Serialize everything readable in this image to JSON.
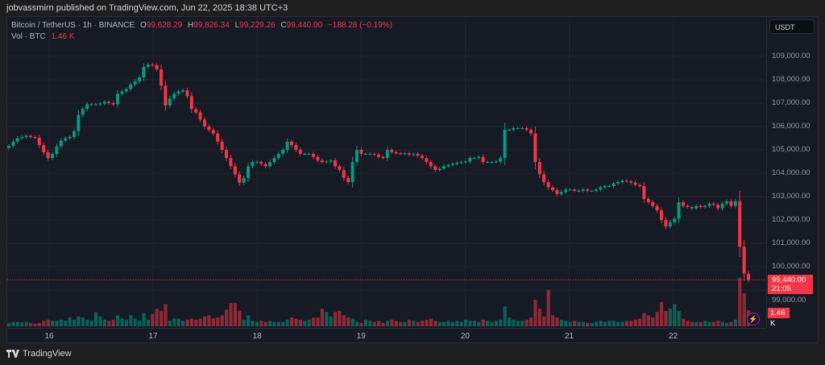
{
  "publisher_line": "jobvassmirn published on TradingView.com, Jun 22, 2025 18:38 UTC+3",
  "legend": {
    "symbol": "Bitcoin / TetherUS · 1h · BINANCE",
    "open_label": "O",
    "open": "99,628.29",
    "high_label": "H",
    "high": "99,826.34",
    "low_label": "L",
    "low": "99,229.26",
    "close_label": "C",
    "close": "99,440.00",
    "change": "−188.28 (−0.19%)",
    "vol_label": "Vol · BTC",
    "vol_value": "1.46 K"
  },
  "currency_button": "USDT",
  "current_price_label": "99,440.00",
  "countdown": "21:05",
  "volume_label": "1.46 K",
  "footer_logo": "TradingView",
  "colors": {
    "up": "#089981",
    "down": "#f23645",
    "background": "#161a25",
    "grid": "#232734",
    "alert_icon": "#9c27b0"
  },
  "icons": {
    "brand": "tradingview-logo",
    "alert": "lightning-icon"
  },
  "chart_data": {
    "type": "candlestick",
    "interval": "1h",
    "ylim": [
      98000,
      109500
    ],
    "y_ticks": [
      "109,000.00",
      "108,000.00",
      "107,000.00",
      "106,000.00",
      "105,000.00",
      "104,000.00",
      "103,000.00",
      "102,000.00",
      "101,000.00",
      "100,000.00",
      "99,000.00"
    ],
    "x_ticks": [
      "16",
      "17",
      "18",
      "19",
      "20",
      "21",
      "22"
    ],
    "grid": true,
    "last_price": 99440,
    "closes": [
      105170,
      105350,
      105500,
      105550,
      105600,
      105550,
      105520,
      105200,
      104900,
      104650,
      104820,
      105150,
      105400,
      105500,
      105550,
      105800,
      106500,
      106750,
      106950,
      106950,
      106950,
      106980,
      107050,
      107000,
      106950,
      107400,
      107500,
      107600,
      107800,
      107930,
      108100,
      108550,
      108650,
      108620,
      108450,
      107750,
      106900,
      107200,
      107400,
      107500,
      107550,
      107300,
      106750,
      106600,
      106300,
      106000,
      105850,
      105700,
      105350,
      105000,
      104650,
      104300,
      103950,
      103600,
      103800,
      104300,
      104480,
      104480,
      104400,
      104300,
      104480,
      104650,
      104830,
      105000,
      105350,
      105200,
      105000,
      104830,
      104830,
      104830,
      104700,
      104550,
      104480,
      104500,
      104550,
      104300,
      104140,
      103800,
      103620,
      104480,
      105000,
      104830,
      104830,
      104830,
      104800,
      104700,
      104650,
      105000,
      104900,
      104850,
      104830,
      104850,
      104800,
      104830,
      104750,
      104650,
      104480,
      104300,
      104140,
      104200,
      104300,
      104350,
      104400,
      104450,
      104480,
      104500,
      104650,
      104650,
      104700,
      104480,
      104480,
      104480,
      104500,
      104650,
      105860,
      105860,
      105930,
      105930,
      105930,
      105860,
      105700,
      104480,
      103960,
      103620,
      103400,
      103280,
      103110,
      103200,
      103300,
      103300,
      103250,
      103250,
      103300,
      103250,
      103250,
      103300,
      103400,
      103450,
      103450,
      103560,
      103620,
      103680,
      103650,
      103600,
      103500,
      103450,
      102900,
      102760,
      102600,
      102410,
      102000,
      101720,
      101900,
      102050,
      102760,
      102600,
      102550,
      102500,
      102600,
      102550,
      102600,
      102700,
      102650,
      102500,
      102700,
      102800,
      102600,
      102800,
      100860,
      99700,
      99440
    ],
    "volumes_k": [
      0.3,
      0.4,
      0.4,
      0.35,
      0.4,
      0.3,
      0.25,
      0.3,
      0.5,
      0.6,
      0.5,
      0.5,
      0.6,
      0.5,
      0.8,
      0.6,
      0.9,
      0.8,
      0.6,
      0.5,
      1.3,
      0.9,
      0.6,
      0.5,
      0.6,
      1.0,
      0.7,
      0.6,
      1.0,
      0.7,
      0.5,
      1.2,
      0.6,
      1.1,
      1.6,
      1.4,
      2.0,
      0.5,
      0.7,
      0.7,
      0.5,
      0.6,
      0.7,
      0.6,
      0.7,
      0.9,
      1.0,
      0.7,
      0.8,
      1.0,
      1.5,
      2.1,
      2.1,
      1.4,
      0.6,
      1.0,
      0.5,
      0.4,
      0.5,
      0.4,
      0.5,
      0.4,
      0.4,
      0.4,
      0.6,
      0.8,
      0.7,
      0.6,
      0.5,
      0.6,
      0.8,
      0.8,
      1.6,
      1.3,
      0.9,
      1.3,
      1.4,
      1.0,
      0.8,
      0.7,
      0.4,
      0.3,
      0.6,
      0.5,
      0.4,
      0.5,
      0.3,
      0.5,
      0.6,
      0.5,
      0.4,
      0.4,
      0.6,
      0.5,
      0.4,
      0.5,
      0.6,
      0.7,
      0.5,
      0.4,
      0.4,
      0.5,
      0.4,
      0.5,
      0.4,
      0.6,
      0.5,
      0.5,
      0.4,
      0.6,
      0.5,
      0.4,
      0.5,
      0.6,
      1.8,
      0.8,
      0.6,
      0.5,
      0.5,
      0.6,
      0.8,
      2.4,
      1.6,
      0.9,
      3.3,
      1.0,
      0.8,
      0.6,
      0.5,
      0.4,
      0.5,
      0.4,
      0.4,
      0.3,
      0.3,
      0.4,
      0.5,
      0.4,
      0.5,
      0.5,
      0.4,
      0.4,
      0.5,
      0.5,
      0.6,
      0.7,
      1.2,
      1.0,
      0.8,
      1.3,
      2.2,
      1.4,
      1.6,
      2.0,
      1.4,
      0.7,
      0.5,
      0.4,
      0.4,
      0.4,
      0.5,
      0.4,
      0.4,
      0.5,
      0.4,
      0.3,
      0.4,
      0.6,
      4.4,
      3.0,
      1.46
    ]
  }
}
